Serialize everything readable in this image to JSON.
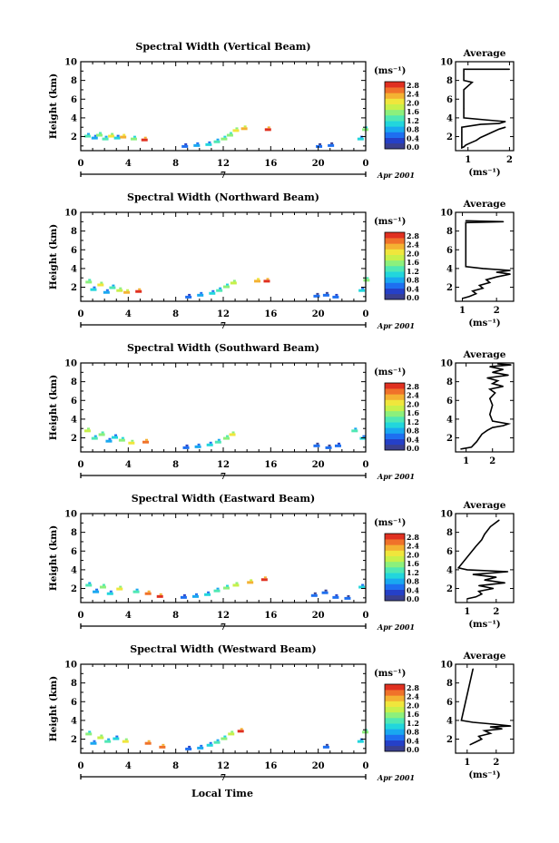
{
  "figure": {
    "xlabel_bottom": "Local Time",
    "colorscale_colors": [
      "#3a3f8f",
      "#2540c8",
      "#1e6ff0",
      "#19a8f0",
      "#22d6dc",
      "#4fe8b4",
      "#8cf07c",
      "#c8f04a",
      "#f0e63c",
      "#f4b232",
      "#f0722a",
      "#e03020"
    ],
    "colorbar": {
      "unit_label": "(ms⁻¹)",
      "ticks": [
        "2.8",
        "2.4",
        "2.0",
        "1.6",
        "1.2",
        "0.8",
        "0.4",
        "0.0"
      ]
    },
    "date_label": "Apr 2001",
    "day_label": "7",
    "average_title": "Average",
    "average_xlabel": "(ms⁻¹)"
  },
  "chart_data": [
    {
      "type": "heatmap",
      "title": "Spectral Width (Vertical Beam)",
      "ylabel": "Height (km)",
      "xlabel": "",
      "x_ticks": [
        "0",
        "4",
        "8",
        "12",
        "16",
        "20",
        "0"
      ],
      "y_ticks": [
        "2",
        "4",
        "6",
        "8",
        "10"
      ],
      "xlim": [
        0,
        24
      ],
      "ylim": [
        0.5,
        10
      ],
      "patches": [
        {
          "x": 0.3,
          "y": 1.9,
          "v": 1.2
        },
        {
          "x": 0.9,
          "y": 1.7,
          "v": 0.8
        },
        {
          "x": 1.3,
          "y": 2.0,
          "v": 1.6
        },
        {
          "x": 1.8,
          "y": 1.6,
          "v": 1.2
        },
        {
          "x": 2.3,
          "y": 1.9,
          "v": 2.0
        },
        {
          "x": 2.8,
          "y": 1.7,
          "v": 1.0
        },
        {
          "x": 3.3,
          "y": 1.8,
          "v": 2.4
        },
        {
          "x": 4.2,
          "y": 1.6,
          "v": 1.4
        },
        {
          "x": 5.1,
          "y": 1.5,
          "v": 2.8
        },
        {
          "x": 8.5,
          "y": 0.8,
          "v": 0.6
        },
        {
          "x": 9.5,
          "y": 0.9,
          "v": 0.8
        },
        {
          "x": 10.5,
          "y": 1.0,
          "v": 1.0
        },
        {
          "x": 11.2,
          "y": 1.3,
          "v": 1.2
        },
        {
          "x": 11.8,
          "y": 1.6,
          "v": 1.4
        },
        {
          "x": 12.3,
          "y": 2.0,
          "v": 1.6
        },
        {
          "x": 12.8,
          "y": 2.5,
          "v": 2.0
        },
        {
          "x": 13.5,
          "y": 2.7,
          "v": 2.2
        },
        {
          "x": 15.5,
          "y": 2.6,
          "v": 2.8
        },
        {
          "x": 19.8,
          "y": 0.8,
          "v": 0.4
        },
        {
          "x": 20.8,
          "y": 0.9,
          "v": 0.4
        },
        {
          "x": 23.3,
          "y": 1.6,
          "v": 1.0
        },
        {
          "x": 23.7,
          "y": 2.6,
          "v": 1.4
        }
      ],
      "average": {
        "xlabel": "(ms⁻¹)",
        "x_ticks": [
          "1",
          "2"
        ],
        "xlim": [
          0.7,
          2.1
        ],
        "ylim": [
          0.5,
          10
        ],
        "x": [
          1.9,
          1.75,
          1.6,
          1.45,
          1.3,
          1.2,
          1.05,
          0.95,
          0.9,
          0.85,
          0.85,
          0.85,
          0.85,
          1.3,
          1.75,
          1.9,
          1.4,
          0.9,
          0.9,
          0.9,
          0.9,
          1.1,
          0.9,
          0.9,
          0.9,
          0.9,
          0.9,
          0.9,
          2.0
        ],
        "y": [
          3.0,
          2.8,
          2.5,
          2.2,
          1.9,
          1.6,
          1.3,
          1.1,
          0.9,
          0.8,
          1.5,
          2.5,
          3.0,
          3.3,
          3.4,
          3.6,
          3.8,
          4.0,
          5.0,
          6.0,
          7.0,
          7.8,
          8.0,
          8.6,
          9.0,
          9.0,
          9.1,
          9.2,
          9.2
        ]
      }
    },
    {
      "type": "heatmap",
      "title": "Spectral Width (Northward Beam)",
      "ylabel": "Height (km)",
      "xlabel": "",
      "x_ticks": [
        "0",
        "4",
        "8",
        "12",
        "16",
        "20",
        "0"
      ],
      "y_ticks": [
        "2",
        "4",
        "6",
        "8",
        "10"
      ],
      "xlim": [
        0,
        24
      ],
      "ylim": [
        0.5,
        10
      ],
      "patches": [
        {
          "x": 0.4,
          "y": 2.4,
          "v": 1.6
        },
        {
          "x": 0.8,
          "y": 1.6,
          "v": 1.0
        },
        {
          "x": 1.4,
          "y": 2.1,
          "v": 2.0
        },
        {
          "x": 1.9,
          "y": 1.3,
          "v": 0.8
        },
        {
          "x": 2.4,
          "y": 1.8,
          "v": 1.2
        },
        {
          "x": 3.0,
          "y": 1.5,
          "v": 1.8
        },
        {
          "x": 3.6,
          "y": 1.3,
          "v": 2.2
        },
        {
          "x": 4.6,
          "y": 1.4,
          "v": 2.8
        },
        {
          "x": 8.8,
          "y": 0.8,
          "v": 0.6
        },
        {
          "x": 9.8,
          "y": 1.0,
          "v": 0.8
        },
        {
          "x": 10.8,
          "y": 1.2,
          "v": 1.0
        },
        {
          "x": 11.4,
          "y": 1.5,
          "v": 1.2
        },
        {
          "x": 12.0,
          "y": 1.9,
          "v": 1.4
        },
        {
          "x": 12.6,
          "y": 2.3,
          "v": 1.8
        },
        {
          "x": 14.6,
          "y": 2.5,
          "v": 2.4
        },
        {
          "x": 15.4,
          "y": 2.5,
          "v": 2.8
        },
        {
          "x": 19.6,
          "y": 0.9,
          "v": 0.4
        },
        {
          "x": 20.4,
          "y": 1.0,
          "v": 0.4
        },
        {
          "x": 21.2,
          "y": 0.8,
          "v": 0.6
        },
        {
          "x": 23.4,
          "y": 1.5,
          "v": 1.0
        },
        {
          "x": 23.8,
          "y": 2.6,
          "v": 1.6
        }
      ],
      "average": {
        "xlabel": "(ms⁻¹)",
        "x_ticks": [
          "1",
          "2"
        ],
        "xlim": [
          0.8,
          2.5
        ],
        "ylim": [
          0.5,
          10
        ],
        "x": [
          1.0,
          1.2,
          1.4,
          1.3,
          1.6,
          1.5,
          1.8,
          1.7,
          2.0,
          2.4,
          2.0,
          2.4,
          1.6,
          1.1,
          1.1,
          1.1,
          1.1,
          1.1,
          1.1,
          1.1,
          2.2,
          1.1
        ],
        "y": [
          0.8,
          1.0,
          1.3,
          1.6,
          1.9,
          2.2,
          2.5,
          2.8,
          3.1,
          3.4,
          3.6,
          3.8,
          4.0,
          4.2,
          5.0,
          6.0,
          7.0,
          8.0,
          8.6,
          8.9,
          9.0,
          9.1
        ]
      }
    },
    {
      "type": "heatmap",
      "title": "Spectral Width (Southward Beam)",
      "ylabel": "Height (km)",
      "xlabel": "",
      "x_ticks": [
        "0",
        "4",
        "8",
        "12",
        "16",
        "20",
        "0"
      ],
      "y_ticks": [
        "2",
        "4",
        "6",
        "8",
        "10"
      ],
      "xlim": [
        0,
        24
      ],
      "ylim": [
        0.5,
        10
      ],
      "patches": [
        {
          "x": 0.3,
          "y": 2.6,
          "v": 1.8
        },
        {
          "x": 0.9,
          "y": 1.8,
          "v": 1.2
        },
        {
          "x": 1.5,
          "y": 2.2,
          "v": 1.6
        },
        {
          "x": 2.1,
          "y": 1.5,
          "v": 0.8
        },
        {
          "x": 2.6,
          "y": 1.9,
          "v": 1.0
        },
        {
          "x": 3.2,
          "y": 1.6,
          "v": 1.4
        },
        {
          "x": 4.0,
          "y": 1.3,
          "v": 2.0
        },
        {
          "x": 5.2,
          "y": 1.4,
          "v": 2.6
        },
        {
          "x": 8.6,
          "y": 0.8,
          "v": 0.6
        },
        {
          "x": 9.6,
          "y": 0.9,
          "v": 0.8
        },
        {
          "x": 10.6,
          "y": 1.1,
          "v": 1.0
        },
        {
          "x": 11.3,
          "y": 1.4,
          "v": 1.2
        },
        {
          "x": 12.0,
          "y": 1.8,
          "v": 1.6
        },
        {
          "x": 12.5,
          "y": 2.2,
          "v": 2.0
        },
        {
          "x": 19.6,
          "y": 1.0,
          "v": 0.4
        },
        {
          "x": 20.6,
          "y": 0.8,
          "v": 0.4
        },
        {
          "x": 21.4,
          "y": 1.0,
          "v": 0.6
        },
        {
          "x": 22.8,
          "y": 2.6,
          "v": 1.2
        },
        {
          "x": 23.5,
          "y": 1.8,
          "v": 1.0
        }
      ],
      "average": {
        "xlabel": "",
        "x_ticks": [
          "1",
          "2"
        ],
        "xlim": [
          0.6,
          2.8
        ],
        "ylim": [
          0.5,
          10
        ],
        "x": [
          0.8,
          1.2,
          1.3,
          1.4,
          1.5,
          1.6,
          1.8,
          2.0,
          2.4,
          2.6,
          2.0,
          1.9,
          2.0,
          1.9,
          2.1,
          1.9,
          2.4,
          2.0,
          2.2,
          1.8,
          2.6,
          2.0,
          2.4,
          1.9,
          2.7,
          2.2
        ],
        "y": [
          0.8,
          1.0,
          1.3,
          1.6,
          2.0,
          2.4,
          2.8,
          3.1,
          3.3,
          3.5,
          3.8,
          4.5,
          5.5,
          6.2,
          6.8,
          7.2,
          7.5,
          7.8,
          8.1,
          8.4,
          8.7,
          9.0,
          9.3,
          9.6,
          9.8,
          9.9
        ]
      }
    },
    {
      "type": "heatmap",
      "title": "Spectral Width (Eastward Beam)",
      "ylabel": "Height (km)",
      "xlabel": "",
      "x_ticks": [
        "0",
        "4",
        "8",
        "12",
        "16",
        "20",
        "0"
      ],
      "y_ticks": [
        "2",
        "4",
        "6",
        "8",
        "10"
      ],
      "xlim": [
        0,
        24
      ],
      "ylim": [
        0.5,
        10
      ],
      "patches": [
        {
          "x": 0.4,
          "y": 2.2,
          "v": 1.2
        },
        {
          "x": 1.0,
          "y": 1.5,
          "v": 0.8
        },
        {
          "x": 1.6,
          "y": 2.0,
          "v": 1.6
        },
        {
          "x": 2.2,
          "y": 1.3,
          "v": 1.0
        },
        {
          "x": 3.0,
          "y": 1.8,
          "v": 2.0
        },
        {
          "x": 4.4,
          "y": 1.5,
          "v": 1.2
        },
        {
          "x": 5.4,
          "y": 1.3,
          "v": 2.6
        },
        {
          "x": 6.4,
          "y": 1.0,
          "v": 2.8
        },
        {
          "x": 8.4,
          "y": 0.9,
          "v": 0.6
        },
        {
          "x": 9.4,
          "y": 1.0,
          "v": 0.8
        },
        {
          "x": 10.4,
          "y": 1.2,
          "v": 1.0
        },
        {
          "x": 11.2,
          "y": 1.6,
          "v": 1.2
        },
        {
          "x": 12.0,
          "y": 1.9,
          "v": 1.4
        },
        {
          "x": 12.8,
          "y": 2.2,
          "v": 1.8
        },
        {
          "x": 14.0,
          "y": 2.5,
          "v": 2.2
        },
        {
          "x": 15.2,
          "y": 2.8,
          "v": 2.8
        },
        {
          "x": 19.4,
          "y": 1.1,
          "v": 0.4
        },
        {
          "x": 20.3,
          "y": 1.4,
          "v": 0.4
        },
        {
          "x": 21.2,
          "y": 0.9,
          "v": 0.6
        },
        {
          "x": 22.2,
          "y": 0.8,
          "v": 0.4
        },
        {
          "x": 23.4,
          "y": 2.0,
          "v": 1.0
        }
      ],
      "average": {
        "xlabel": "(ms⁻¹)",
        "x_ticks": [
          "1",
          "2"
        ],
        "xlim": [
          0.6,
          2.6
        ],
        "ylim": [
          0.5,
          10
        ],
        "x": [
          1.0,
          1.3,
          1.5,
          1.4,
          1.9,
          1.4,
          2.3,
          1.6,
          2.0,
          1.2,
          2.4,
          1.0,
          0.7,
          1.3,
          1.5,
          1.6,
          1.8,
          2.1
        ],
        "y": [
          0.9,
          1.1,
          1.4,
          1.7,
          2.0,
          2.3,
          2.6,
          2.9,
          3.2,
          3.5,
          3.8,
          4.0,
          4.2,
          6.5,
          7.2,
          7.8,
          8.6,
          9.3
        ]
      }
    },
    {
      "type": "heatmap",
      "title": "Spectral Width (Westward Beam)",
      "ylabel": "Height (km)",
      "xlabel": "Local Time",
      "x_ticks": [
        "0",
        "4",
        "8",
        "12",
        "16",
        "20",
        "0"
      ],
      "y_ticks": [
        "2",
        "4",
        "6",
        "8",
        "10"
      ],
      "xlim": [
        0,
        24
      ],
      "ylim": [
        0.5,
        10
      ],
      "patches": [
        {
          "x": 0.4,
          "y": 2.4,
          "v": 1.4
        },
        {
          "x": 0.8,
          "y": 1.4,
          "v": 0.8
        },
        {
          "x": 1.4,
          "y": 2.0,
          "v": 1.8
        },
        {
          "x": 2.0,
          "y": 1.6,
          "v": 1.2
        },
        {
          "x": 2.7,
          "y": 1.9,
          "v": 1.0
        },
        {
          "x": 3.5,
          "y": 1.6,
          "v": 2.0
        },
        {
          "x": 5.4,
          "y": 1.4,
          "v": 2.6
        },
        {
          "x": 6.6,
          "y": 1.0,
          "v": 2.6
        },
        {
          "x": 8.8,
          "y": 0.8,
          "v": 0.6
        },
        {
          "x": 9.8,
          "y": 0.9,
          "v": 0.8
        },
        {
          "x": 10.6,
          "y": 1.2,
          "v": 1.0
        },
        {
          "x": 11.2,
          "y": 1.5,
          "v": 1.2
        },
        {
          "x": 11.8,
          "y": 1.9,
          "v": 1.4
        },
        {
          "x": 12.4,
          "y": 2.4,
          "v": 1.8
        },
        {
          "x": 13.2,
          "y": 2.7,
          "v": 2.8
        },
        {
          "x": 20.4,
          "y": 1.0,
          "v": 0.4
        },
        {
          "x": 23.3,
          "y": 1.6,
          "v": 1.0
        },
        {
          "x": 23.7,
          "y": 2.6,
          "v": 1.6
        }
      ],
      "average": {
        "xlabel": "(ms⁻¹)",
        "x_ticks": [
          "1",
          "2"
        ],
        "xlim": [
          0.6,
          2.6
        ],
        "ylim": [
          0.5,
          10
        ],
        "x": [
          1.1,
          1.3,
          1.5,
          1.4,
          1.8,
          1.6,
          2.2,
          1.8,
          2.5,
          1.9,
          1.2,
          0.8,
          1.2
        ],
        "y": [
          1.4,
          1.7,
          2.0,
          2.3,
          2.6,
          2.9,
          3.1,
          3.3,
          3.4,
          3.6,
          3.8,
          4.0,
          9.5
        ]
      }
    }
  ]
}
